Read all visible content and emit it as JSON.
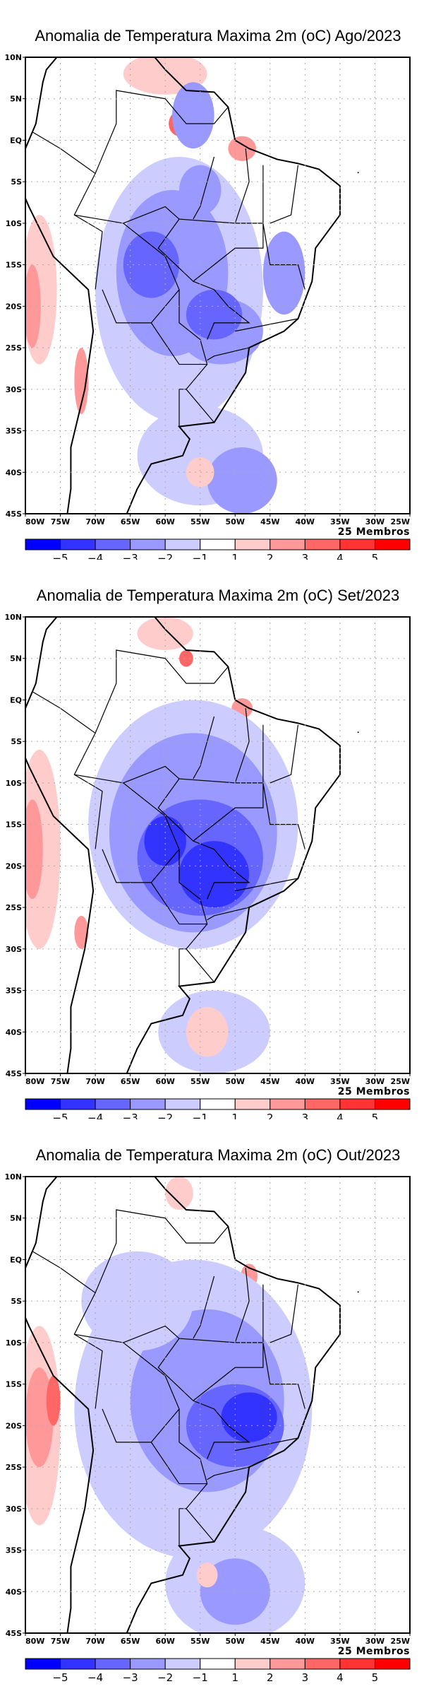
{
  "colorbar": {
    "colors": [
      "#0000ff",
      "#3333ff",
      "#6666ff",
      "#9999ff",
      "#ccccff",
      "#ffffff",
      "#ffcccc",
      "#ff9999",
      "#ff6666",
      "#ff3333",
      "#ff0000"
    ],
    "labels": [
      "-5",
      "-4",
      "-3",
      "-2",
      "-1",
      "1",
      "2",
      "3",
      "4",
      "5"
    ]
  },
  "axes": {
    "lat_labels": [
      "10N",
      "5N",
      "EQ",
      "5S",
      "10S",
      "15S",
      "20S",
      "25S",
      "30S",
      "35S",
      "40S",
      "45S"
    ],
    "lon_labels": [
      "80W",
      "75W",
      "70W",
      "65W",
      "60W",
      "55W",
      "50W",
      "45W",
      "40W",
      "35W",
      "30W",
      "25W"
    ],
    "lon_range": [
      -80,
      -25
    ],
    "lat_range": [
      10,
      -45
    ]
  },
  "panels": [
    {
      "title": "Anomalia de Temperatura Maxima 2m (oC) Ago/2023",
      "members": "25 Membros",
      "month": "Ago"
    },
    {
      "title": "Anomalia de Temperatura Maxima 2m (oC) Set/2023",
      "members": "25 Membros",
      "month": "Set"
    },
    {
      "title": "Anomalia de Temperatura Maxima 2m (oC) Out/2023",
      "members": "25 Membros",
      "month": "Out"
    }
  ]
}
